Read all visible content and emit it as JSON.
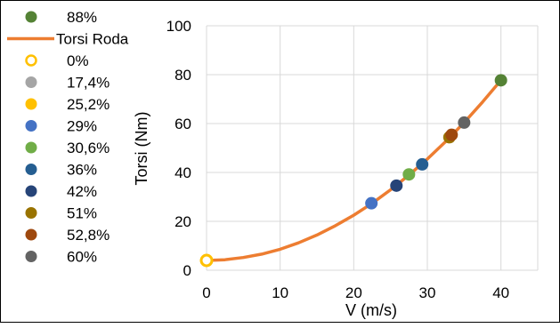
{
  "chart_data": {
    "type": "scatter",
    "xlabel": "V (m/s)",
    "ylabel": "Torsi (Nm)",
    "xlim": [
      0,
      45
    ],
    "ylim": [
      0,
      100
    ],
    "x_ticks": [
      0,
      10,
      20,
      30,
      40
    ],
    "y_ticks": [
      0,
      20,
      40,
      60,
      80,
      100
    ],
    "grid": true,
    "legend_position": "left",
    "line_series": {
      "name": "Torsi Roda",
      "color": "#ED7D31",
      "x": [
        0,
        2.5,
        5,
        7.5,
        10,
        12.5,
        15,
        17.5,
        20,
        22.5,
        25,
        27.5,
        30,
        32.5,
        35,
        37.5,
        40
      ],
      "y": [
        4.0,
        4.3,
        5.2,
        6.6,
        8.6,
        11.2,
        14.4,
        18.2,
        22.5,
        27.4,
        32.9,
        38.9,
        45.5,
        52.7,
        60.4,
        68.8,
        77.7
      ]
    },
    "point_series": [
      {
        "name": "88%",
        "color": "#548235",
        "hollow": false,
        "x": 40.0,
        "y": 77.7
      },
      {
        "name": "0%",
        "color": "#FFC000",
        "hollow": true,
        "x": 0.0,
        "y": 4.0
      },
      {
        "name": "17,4%",
        "color": "#A5A5A5",
        "hollow": false,
        "x": null,
        "y": null
      },
      {
        "name": "25,2%",
        "color": "#FFC000",
        "hollow": false,
        "x": null,
        "y": null
      },
      {
        "name": "29%",
        "color": "#4472C4",
        "hollow": false,
        "x": 22.4,
        "y": 27.4
      },
      {
        "name": "30,6%",
        "color": "#70AD47",
        "hollow": false,
        "x": 27.5,
        "y": 39.2
      },
      {
        "name": "36%",
        "color": "#255E91",
        "hollow": false,
        "x": 29.3,
        "y": 43.3
      },
      {
        "name": "42%",
        "color": "#264478",
        "hollow": false,
        "x": 25.8,
        "y": 34.6
      },
      {
        "name": "51%",
        "color": "#997300",
        "hollow": false,
        "x": 33.0,
        "y": 54.4
      },
      {
        "name": "52,8%",
        "color": "#9E480E",
        "hollow": false,
        "x": 33.3,
        "y": 55.4
      },
      {
        "name": "60%",
        "color": "#636363",
        "hollow": false,
        "x": 35.0,
        "y": 60.4
      }
    ]
  }
}
